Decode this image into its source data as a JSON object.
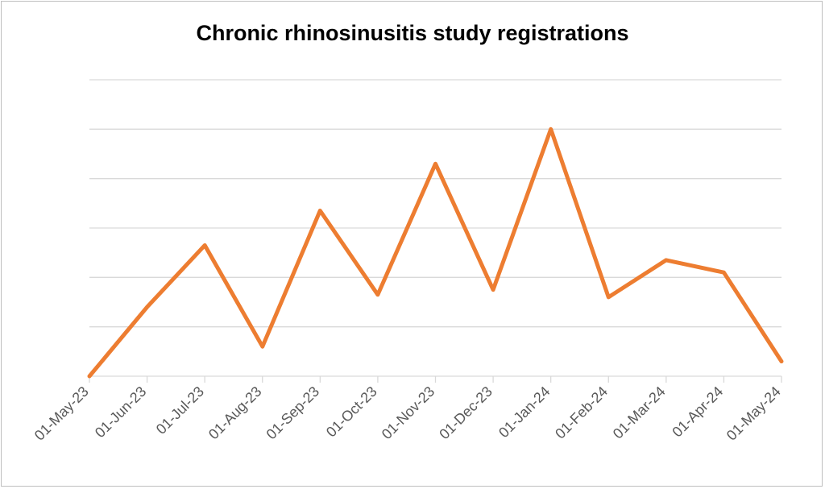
{
  "chart_data": {
    "type": "line",
    "title": "Chronic rhinosinusitis study registrations",
    "xlabel": "",
    "ylabel": "",
    "x": [
      "01-May-23",
      "01-Jun-23",
      "01-Jul-23",
      "01-Aug-23",
      "01-Sep-23",
      "01-Oct-23",
      "01-Nov-23",
      "01-Dec-23",
      "01-Jan-24",
      "01-Feb-24",
      "01-Mar-24",
      "01-Apr-24",
      "01-May-24"
    ],
    "series": [
      {
        "values": [
          0,
          2.8,
          5.3,
          1.2,
          6.7,
          3.3,
          8.6,
          3.5,
          10.0,
          3.2,
          4.7,
          4.2,
          0.6
        ]
      }
    ],
    "ylim": [
      0,
      12
    ],
    "y_gridlines": [
      0,
      2,
      4,
      6,
      8,
      10,
      12
    ],
    "y_tick_labels_visible": false,
    "grid": true,
    "line_color": "#ED7D31",
    "gridline_color": "#d9d9d9"
  }
}
